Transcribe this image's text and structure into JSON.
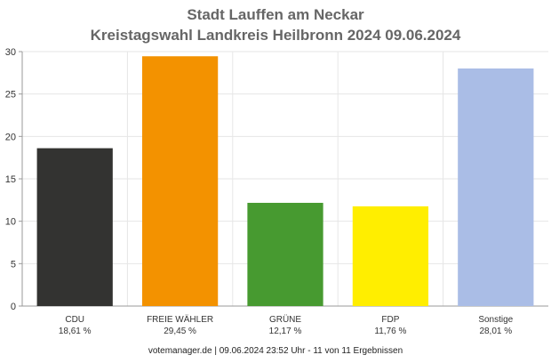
{
  "title_line1": "Stadt Lauffen am Neckar",
  "title_line2": "Kreistagswahl Landkreis Heilbronn 2024 09.06.2024",
  "footer": "votemanager.de | 09.06.2024 23:52 Uhr - 11 von 11 Ergebnissen",
  "chart_data": {
    "type": "bar",
    "title": "Stadt Lauffen am Neckar\nKreistagswahl Landkreis Heilbronn 2024 09.06.2024",
    "categories": [
      "CDU",
      "FREIE WÄHLER",
      "GRÜNE",
      "FDP",
      "Sonstige"
    ],
    "values": [
      18.61,
      29.45,
      12.17,
      11.76,
      28.01
    ],
    "value_labels": [
      "18,61 %",
      "29,45 %",
      "12,17 %",
      "11,76 %",
      "28,01 %"
    ],
    "colors": [
      "#333331",
      "#f39200",
      "#479a30",
      "#ffee00",
      "#aabde6"
    ],
    "ylim": [
      0,
      30
    ],
    "yticks": [
      0,
      5,
      10,
      15,
      20,
      25,
      30
    ],
    "grid": true,
    "xlabel": "",
    "ylabel": ""
  }
}
